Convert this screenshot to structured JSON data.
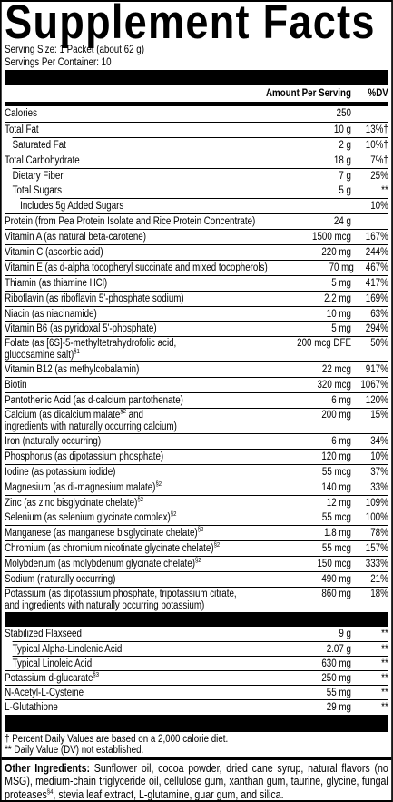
{
  "title": "Supplement Facts",
  "serving_size": "Serving Size: 1 Packet (about 62 g)",
  "servings_per_container": "Servings Per Container: 10",
  "columns": {
    "amount": "Amount Per Serving",
    "dv": "%DV"
  },
  "nutrients": [
    {
      "name": [
        "Calories"
      ],
      "amount": "250",
      "dv": ""
    },
    {
      "name": [
        "Total Fat"
      ],
      "amount": "10 g",
      "dv": "13%†"
    },
    {
      "name": [
        "Saturated Fat"
      ],
      "amount": "2 g",
      "dv": "10%†"
    },
    {
      "name": [
        "Total Carbohydrate"
      ],
      "amount": "18 g",
      "dv": "7%†"
    },
    {
      "name": [
        "Dietary Fiber"
      ],
      "amount": "7 g",
      "dv": "25%"
    },
    {
      "name": [
        "Total Sugars"
      ],
      "amount": "5 g",
      "dv": "**"
    },
    {
      "name": [
        "Includes 5g Added Sugars"
      ],
      "amount": "",
      "dv": "10%"
    },
    {
      "name": [
        "Protein (from Pea Protein Isolate and Rice Protein Concentrate)"
      ],
      "amount": "24 g",
      "dv": ""
    },
    {
      "name": [
        "Vitamin A (as natural beta-carotene)"
      ],
      "amount": "1500 mcg",
      "dv": "167%"
    },
    {
      "name": [
        "Vitamin C (ascorbic acid)"
      ],
      "amount": "220 mg",
      "dv": "244%"
    },
    {
      "name": [
        "Vitamin E (as d-alpha tocopheryl succinate and mixed tocopherols)"
      ],
      "amount": "70 mg",
      "dv": "467%"
    },
    {
      "name": [
        "Thiamin (as thiamine HCl)"
      ],
      "amount": "5 mg",
      "dv": "417%"
    },
    {
      "name": [
        "Riboflavin (as riboflavin 5'-phosphate sodium)"
      ],
      "amount": "2.2 mg",
      "dv": "169%"
    },
    {
      "name": [
        "Niacin (as niacinamide)"
      ],
      "amount": "10 mg",
      "dv": "63%"
    },
    {
      "name": [
        "Vitamin B6 (as pyridoxal 5'-phosphate)"
      ],
      "amount": "5 mg",
      "dv": "294%"
    },
    {
      "name": [
        "Folate (as [6S]-5-methyltetrahydrofolic acid,",
        "glucosamine salt)§1"
      ],
      "amount": "200 mcg DFE",
      "dv": "50%"
    },
    {
      "name": [
        "Vitamin B12 (as methylcobalamin)"
      ],
      "amount": "22 mcg",
      "dv": "917%"
    },
    {
      "name": [
        "Biotin"
      ],
      "amount": "320 mcg",
      "dv": "1067%"
    },
    {
      "name": [
        "Pantothenic Acid (as d-calcium pantothenate)"
      ],
      "amount": "6 mg",
      "dv": "120%"
    },
    {
      "name": [
        "Calcium (as dicalcium malate§2 and",
        "ingredients with naturally occurring calcium)"
      ],
      "amount": "200 mg",
      "dv": "15%"
    },
    {
      "name": [
        "Iron (naturally occurring)"
      ],
      "amount": "6 mg",
      "dv": "34%"
    },
    {
      "name": [
        "Phosphorus (as dipotassium phosphate)"
      ],
      "amount": "120 mg",
      "dv": "10%"
    },
    {
      "name": [
        "Iodine (as potassium iodide)"
      ],
      "amount": "55 mcg",
      "dv": "37%"
    },
    {
      "name": [
        "Magnesium (as di-magnesium malate)§2"
      ],
      "amount": "140 mg",
      "dv": "33%"
    },
    {
      "name": [
        "Zinc (as zinc bisglycinate chelate)§2"
      ],
      "amount": "12 mg",
      "dv": "109%"
    },
    {
      "name": [
        "Selenium (as selenium glycinate complex)§2"
      ],
      "amount": "55 mcg",
      "dv": "100%"
    },
    {
      "name": [
        "Manganese (as manganese bisglycinate chelate)§2"
      ],
      "amount": "1.8 mg",
      "dv": "78%"
    },
    {
      "name": [
        "Chromium (as chromium nicotinate glycinate chelate)§2"
      ],
      "amount": "55 mcg",
      "dv": "157%"
    },
    {
      "name": [
        "Molybdenum (as molybdenum glycinate chelate)§2"
      ],
      "amount": "150 mcg",
      "dv": "333%"
    },
    {
      "name": [
        "Sodium (naturally occurring)"
      ],
      "amount": "490 mg",
      "dv": "21%"
    },
    {
      "name": [
        "Potassium (as dipotassium phosphate, tripotassium citrate,",
        "and ingredients with naturally occurring potassium)"
      ],
      "amount": "860 mg",
      "dv": "18%"
    }
  ],
  "other_nutrients": [
    {
      "name": [
        "Stabilized Flaxseed"
      ],
      "amount": "9 g",
      "dv": "**"
    },
    {
      "name": [
        "Typical Alpha-Linolenic Acid"
      ],
      "amount": "2.07 g",
      "dv": "**"
    },
    {
      "name": [
        "Typical Linoleic Acid"
      ],
      "amount": "630 mg",
      "dv": "**"
    },
    {
      "name": [
        "Potassium d-glucarate§3"
      ],
      "amount": "250 mg",
      "dv": "**"
    },
    {
      "name": [
        "N-Acetyl-L-Cysteine"
      ],
      "amount": "55 mg",
      "dv": "**"
    },
    {
      "name": [
        "L-Glutathione"
      ],
      "amount": "29 mg",
      "dv": "**"
    }
  ],
  "footnotes": [
    "† Percent Daily Values are based on a 2,000 calorie diet.",
    "** Daily Value (DV) not established."
  ],
  "ingredients": {
    "label": "Other Ingredients:",
    "text": "Sunflower oil, cocoa powder, dried cane syrup, natural flavors (no MSG), medium-chain triglyceride oil, cellulose gum, xanthan gum, taurine, glycine, fungal proteases§4, stevia leaf extract, L-glutamine, guar gum, and silica."
  }
}
